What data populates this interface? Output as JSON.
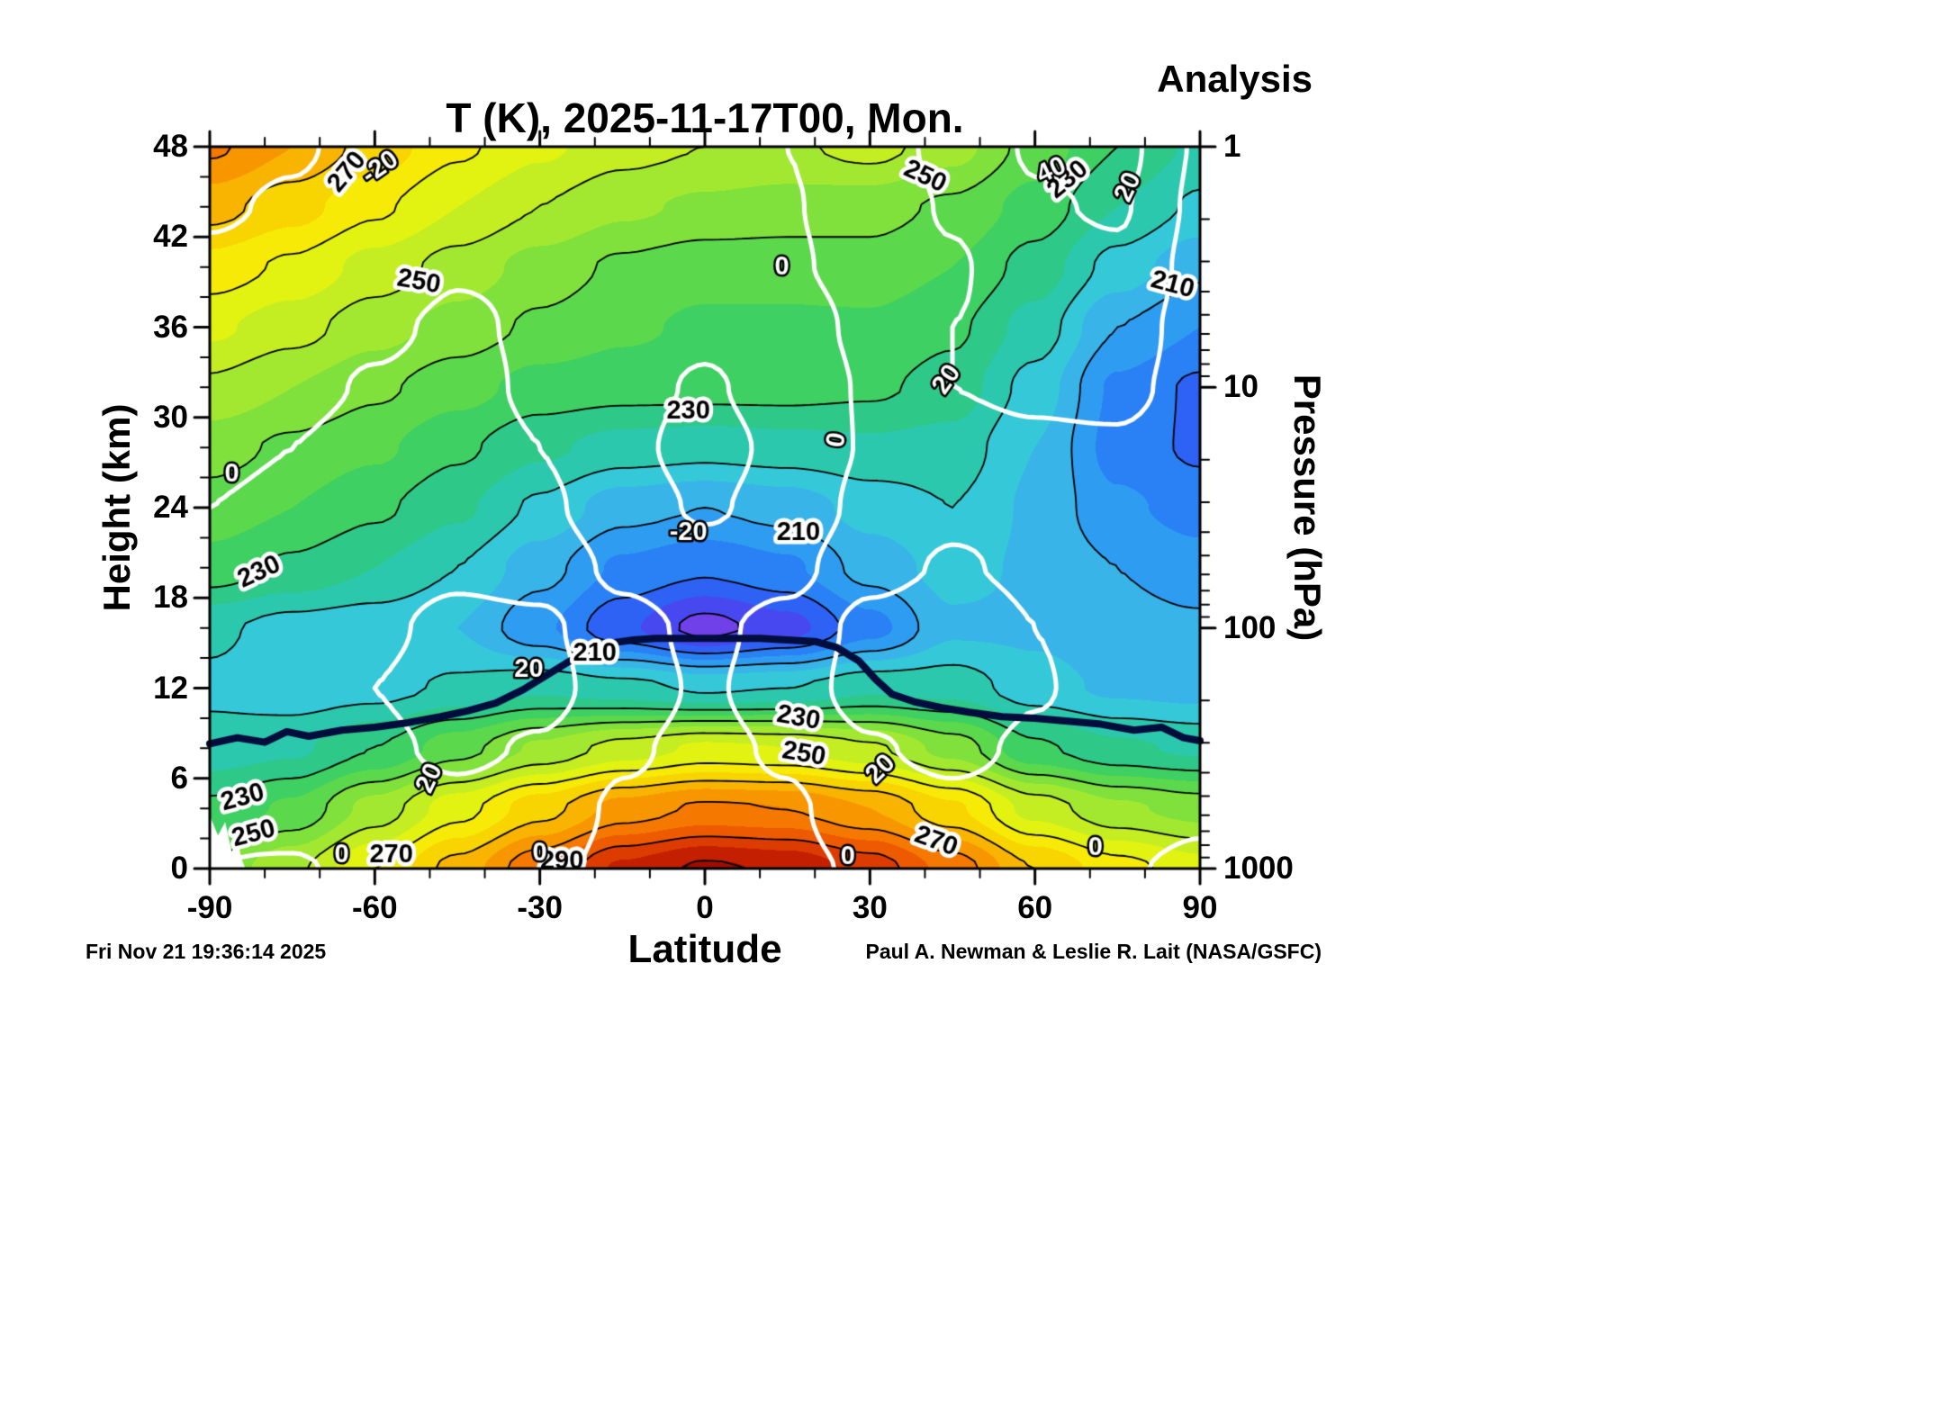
{
  "chart_data": {
    "type": "heatmap",
    "title": "T (K), 2025-11-17T00, Mon.",
    "xlabel": "Latitude",
    "ylabel_left": "Height (km)",
    "ylabel_right": "Pressure (hPa)",
    "xlim_deg": [
      -90,
      90
    ],
    "ylim_km": [
      0,
      48
    ],
    "x_major_ticks_deg": [
      -90,
      -60,
      -30,
      0,
      30,
      60,
      90
    ],
    "x_minor_step_deg": 10,
    "y_major_ticks_km": [
      0,
      6,
      12,
      18,
      24,
      30,
      36,
      42,
      48
    ],
    "y_minor_step_km": 2,
    "pressure_major_ticks_hPa": [
      1,
      10,
      100,
      1000
    ],
    "grid_lat_deg": [
      -90,
      -75,
      -60,
      -45,
      -30,
      -15,
      0,
      15,
      30,
      45,
      60,
      75,
      90
    ],
    "grid_height_km": [
      0,
      4,
      8,
      12,
      16,
      20,
      24,
      28,
      32,
      36,
      40,
      44,
      48
    ],
    "temperature_K": [
      [
        241,
        249,
        260,
        272,
        284,
        296,
        301,
        299,
        293,
        283,
        270,
        262,
        257
      ],
      [
        231,
        236,
        247,
        258,
        268,
        277,
        281,
        280,
        275,
        266,
        253,
        246,
        243
      ],
      [
        222,
        224,
        230,
        238,
        246,
        252,
        256,
        255,
        251,
        243,
        231,
        226,
        224
      ],
      [
        219,
        217,
        218,
        221,
        224,
        222,
        219,
        220,
        224,
        223,
        217,
        214,
        213
      ],
      [
        221,
        218,
        217,
        215,
        206,
        196,
        188,
        193,
        203,
        214,
        214,
        212,
        211
      ],
      [
        233,
        229,
        225,
        220,
        212,
        204,
        201,
        204,
        212,
        217,
        214,
        210,
        207
      ],
      [
        238,
        235,
        231,
        226,
        219,
        212,
        210,
        212,
        217,
        220,
        214,
        206,
        203
      ],
      [
        242,
        239,
        236,
        231,
        226,
        223,
        222,
        223,
        224,
        223,
        215,
        203,
        199
      ],
      [
        249,
        245,
        241,
        237,
        233,
        232,
        232,
        232,
        231,
        228,
        218,
        204,
        199
      ],
      [
        256,
        252,
        247,
        243,
        239,
        236,
        234,
        234,
        234,
        231,
        223,
        210,
        205
      ],
      [
        263,
        259,
        253,
        248,
        243,
        239,
        237,
        237,
        238,
        235,
        228,
        218,
        211
      ],
      [
        272,
        267,
        261,
        255,
        250,
        246,
        244,
        243,
        242,
        239,
        233,
        225,
        219
      ],
      [
        281,
        275,
        268,
        261,
        256,
        252,
        250,
        249,
        252,
        247,
        238,
        230,
        224
      ]
    ],
    "fill_scale": {
      "min_K": 185,
      "step_K": 5,
      "colors": [
        "#7040e8",
        "#4848f0",
        "#2e62f5",
        "#2a80f5",
        "#2e9cf0",
        "#38b4e8",
        "#34c8d8",
        "#2cc8ae",
        "#2ec888",
        "#3ed062",
        "#5cd84c",
        "#80e03c",
        "#a2e830",
        "#c4ee22",
        "#e2f312",
        "#f6ea06",
        "#f8d400",
        "#f8b400",
        "#f89600",
        "#f57800",
        "#ee5a00",
        "#dd3c00",
        "#c42000",
        "#9e0e00"
      ]
    },
    "temp_contours": {
      "levels_K": [
        190,
        200,
        210,
        220,
        230,
        240,
        250,
        260,
        270,
        280,
        290,
        300
      ],
      "color": "#000000"
    },
    "temp_contour_labels": [
      {
        "text": "270",
        "lat": -65,
        "km": 46.3,
        "rot": -50
      },
      {
        "text": "250",
        "lat": -52,
        "km": 39.0,
        "rot": 10
      },
      {
        "text": "250",
        "lat": 40,
        "km": 46.0,
        "rot": 25
      },
      {
        "text": "230",
        "lat": -3,
        "km": 30.4,
        "rot": 0
      },
      {
        "text": "230",
        "lat": 66,
        "km": 45.8,
        "rot": -40
      },
      {
        "text": "210",
        "lat": 85,
        "km": 38.8,
        "rot": 15
      },
      {
        "text": "210",
        "lat": 17,
        "km": 22.3,
        "rot": 0
      },
      {
        "text": "230",
        "lat": -81,
        "km": 19.7,
        "rot": -25
      },
      {
        "text": "210",
        "lat": -20,
        "km": 14.3,
        "rot": 0
      },
      {
        "text": "230",
        "lat": 17,
        "km": 10.0,
        "rot": 10
      },
      {
        "text": "250",
        "lat": 18,
        "km": 7.6,
        "rot": 10
      },
      {
        "text": "230",
        "lat": -84,
        "km": 4.7,
        "rot": -15
      },
      {
        "text": "250",
        "lat": -82,
        "km": 2.3,
        "rot": -15
      },
      {
        "text": "270",
        "lat": -57,
        "km": 0.9,
        "rot": 0
      },
      {
        "text": "270",
        "lat": 42,
        "km": 1.8,
        "rot": 20
      },
      {
        "text": "290",
        "lat": -26,
        "km": 0.5,
        "rot": 0
      }
    ],
    "wind_contours": {
      "levels_ms": [
        -20,
        0,
        20,
        40
      ],
      "color": "#ffffff",
      "dashed_when_negative": true,
      "u_ms": [
        [
          0,
          -1,
          3,
          8,
          3,
          -3,
          -5,
          -3,
          2,
          8,
          5,
          1,
          -2
        ],
        [
          2,
          5,
          10,
          14,
          8,
          -2,
          -5,
          -2,
          8,
          14,
          10,
          5,
          2
        ],
        [
          4,
          8,
          16,
          24,
          18,
          2,
          -4,
          2,
          18,
          26,
          16,
          8,
          4
        ],
        [
          5,
          10,
          20,
          30,
          28,
          8,
          -2,
          8,
          30,
          38,
          22,
          10,
          5
        ],
        [
          4,
          8,
          16,
          26,
          24,
          6,
          -4,
          6,
          26,
          34,
          20,
          10,
          6
        ],
        [
          2,
          5,
          10,
          16,
          12,
          -4,
          -12,
          -6,
          14,
          22,
          16,
          12,
          8
        ],
        [
          0,
          2,
          6,
          10,
          4,
          -12,
          -22,
          -14,
          6,
          16,
          16,
          14,
          10
        ],
        [
          -2,
          0,
          4,
          6,
          0,
          -16,
          -26,
          -16,
          2,
          16,
          18,
          18,
          12
        ],
        [
          -6,
          -3,
          1,
          4,
          -2,
          -14,
          -22,
          -12,
          2,
          20,
          22,
          24,
          14
        ],
        [
          -10,
          -6,
          -2,
          2,
          -2,
          -10,
          -16,
          -8,
          4,
          20,
          26,
          30,
          12
        ],
        [
          -17,
          -13,
          -7,
          -1,
          -2,
          -6,
          -10,
          -2,
          6,
          18,
          32,
          36,
          14
        ],
        [
          -22,
          -18,
          -10,
          -3,
          -2,
          -4,
          -6,
          -1,
          8,
          22,
          38,
          42,
          16
        ],
        [
          -26,
          -22,
          -14,
          -6,
          -3,
          -2,
          -4,
          0,
          10,
          26,
          42,
          46,
          18
        ]
      ]
    },
    "wind_contour_labels": [
      {
        "text": "-20",
        "lat": -59,
        "km": 46.6,
        "rot": -35
      },
      {
        "text": "0",
        "lat": 14,
        "km": 40.0,
        "rot": 0
      },
      {
        "text": "40",
        "lat": 63,
        "km": 46.4,
        "rot": -25
      },
      {
        "text": "20",
        "lat": 77,
        "km": 45.3,
        "rot": -65
      },
      {
        "text": "20",
        "lat": 44,
        "km": 32.5,
        "rot": -55
      },
      {
        "text": "0",
        "lat": 24,
        "km": 28.5,
        "rot": -80
      },
      {
        "text": "-20",
        "lat": -3,
        "km": 22.3,
        "rot": 0
      },
      {
        "text": "0",
        "lat": -86,
        "km": 26.2,
        "rot": 0
      },
      {
        "text": "20",
        "lat": -32,
        "km": 13.2,
        "rot": 0
      },
      {
        "text": "20",
        "lat": -50,
        "km": 6.0,
        "rot": -65
      },
      {
        "text": "0",
        "lat": -66,
        "km": 0.9,
        "rot": 0
      },
      {
        "text": "0",
        "lat": -30,
        "km": 1.0,
        "rot": 0
      },
      {
        "text": "20",
        "lat": 32,
        "km": 6.6,
        "rot": -45
      },
      {
        "text": "0",
        "lat": 26,
        "km": 0.8,
        "rot": 0
      },
      {
        "text": "0",
        "lat": 71,
        "km": 1.4,
        "rot": 0
      }
    ],
    "tropopause_line": {
      "color": "#000d3d",
      "lat_deg": [
        -90,
        -85,
        -80,
        -76,
        -72,
        -66,
        -60,
        -54,
        -48,
        -43,
        -38,
        -33,
        -29,
        -25,
        -21,
        -17,
        -13,
        -9,
        -5,
        0,
        5,
        10,
        15,
        20,
        24,
        28,
        31,
        34,
        38,
        43,
        48,
        54,
        60,
        66,
        72,
        78,
        83,
        87,
        90
      ],
      "height_km": [
        8.3,
        8.7,
        8.4,
        9.1,
        8.8,
        9.2,
        9.4,
        9.7,
        10.1,
        10.5,
        11.0,
        11.9,
        12.8,
        13.7,
        14.5,
        15.0,
        15.2,
        15.3,
        15.3,
        15.3,
        15.3,
        15.3,
        15.2,
        15.1,
        14.7,
        13.8,
        12.6,
        11.6,
        11.1,
        10.7,
        10.4,
        10.1,
        10.0,
        9.8,
        9.6,
        9.2,
        9.4,
        8.7,
        8.5
      ]
    },
    "surface_mask": {
      "color": "#ffffff",
      "lat_deg": [
        -90,
        -88.5,
        -87.2,
        -86,
        -85,
        -84.2,
        -83.5,
        -90
      ],
      "height_km": [
        3.5,
        2.2,
        3.1,
        1.1,
        2.0,
        0.6,
        0,
        0
      ]
    }
  },
  "annotations": {
    "analysis_label": "Analysis"
  },
  "footer": {
    "timestamp": "Fri Nov 21 19:36:14 2025",
    "credit": "Paul A. Newman & Leslie R. Lait (NASA/GSFC)"
  }
}
